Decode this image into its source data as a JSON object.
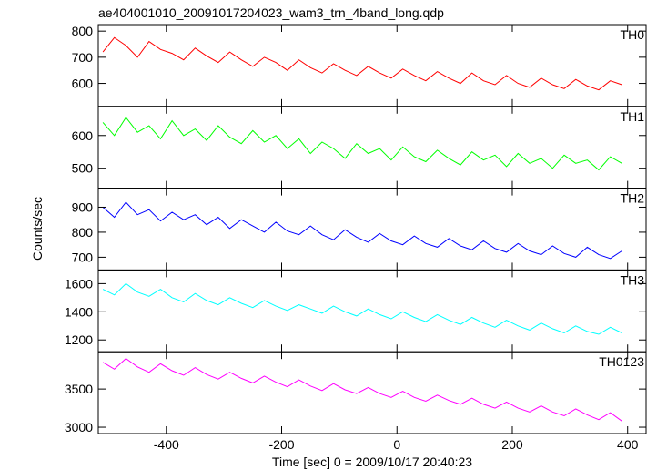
{
  "chart_data": {
    "type": "line",
    "title": "ae404001010_20091017204023_wam3_trn_4band_long.qdp",
    "xlabel": "Time [sec] 0 = 2009/10/17 20:40:23",
    "ylabel": "Counts/sec",
    "xlim": [
      -518,
      432
    ],
    "xticks": [
      -400,
      -200,
      0,
      200,
      400
    ],
    "x": [
      -510,
      -490,
      -470,
      -450,
      -430,
      -410,
      -390,
      -370,
      -350,
      -330,
      -310,
      -290,
      -270,
      -250,
      -230,
      -210,
      -190,
      -170,
      -150,
      -130,
      -110,
      -90,
      -70,
      -50,
      -30,
      -10,
      10,
      30,
      50,
      70,
      90,
      110,
      130,
      150,
      170,
      190,
      210,
      230,
      250,
      270,
      290,
      310,
      330,
      350,
      370,
      390
    ],
    "panels": [
      {
        "name": "TH0",
        "color": "#ff0000",
        "ylim": [
          512,
          825
        ],
        "yticks": [
          600,
          700,
          800
        ],
        "values": [
          720,
          775,
          745,
          700,
          760,
          730,
          715,
          690,
          735,
          705,
          680,
          720,
          690,
          665,
          700,
          680,
          650,
          690,
          660,
          640,
          675,
          650,
          630,
          665,
          640,
          620,
          655,
          630,
          610,
          645,
          620,
          600,
          640,
          610,
          595,
          630,
          600,
          585,
          620,
          595,
          580,
          615,
          590,
          575,
          610,
          595
        ]
      },
      {
        "name": "TH1",
        "color": "#00ff00",
        "ylim": [
          439,
          689
        ],
        "yticks": [
          500,
          600
        ],
        "values": [
          640,
          600,
          655,
          610,
          630,
          590,
          645,
          600,
          620,
          585,
          630,
          595,
          575,
          615,
          580,
          600,
          560,
          590,
          545,
          580,
          560,
          530,
          575,
          545,
          560,
          525,
          565,
          535,
          520,
          555,
          530,
          510,
          550,
          525,
          540,
          505,
          545,
          515,
          530,
          500,
          540,
          515,
          525,
          495,
          535,
          515
        ]
      },
      {
        "name": "TH2",
        "color": "#0000ff",
        "ylim": [
          649,
          976
        ],
        "yticks": [
          700,
          800,
          900
        ],
        "values": [
          900,
          860,
          920,
          870,
          890,
          845,
          880,
          850,
          870,
          830,
          860,
          815,
          850,
          825,
          800,
          840,
          805,
          790,
          825,
          790,
          770,
          810,
          780,
          760,
          795,
          765,
          750,
          785,
          755,
          740,
          775,
          745,
          730,
          765,
          735,
          720,
          755,
          725,
          710,
          745,
          715,
          700,
          740,
          710,
          695,
          725
        ]
      },
      {
        "name": "TH3",
        "color": "#00ffff",
        "ylim": [
          1116,
          1697
        ],
        "yticks": [
          1200,
          1400,
          1600
        ],
        "values": [
          1560,
          1520,
          1600,
          1540,
          1510,
          1560,
          1500,
          1470,
          1530,
          1480,
          1450,
          1500,
          1460,
          1430,
          1480,
          1440,
          1410,
          1450,
          1420,
          1390,
          1440,
          1400,
          1370,
          1420,
          1380,
          1350,
          1400,
          1360,
          1330,
          1380,
          1340,
          1310,
          1360,
          1320,
          1290,
          1340,
          1300,
          1270,
          1320,
          1280,
          1250,
          1300,
          1260,
          1240,
          1290,
          1250
        ]
      },
      {
        "name": "TH0123",
        "color": "#ff00ff",
        "ylim": [
          2917,
          3988
        ],
        "yticks": [
          3000,
          3500
        ],
        "values": [
          3850,
          3760,
          3900,
          3790,
          3720,
          3830,
          3740,
          3680,
          3780,
          3690,
          3630,
          3720,
          3640,
          3580,
          3670,
          3590,
          3530,
          3620,
          3540,
          3480,
          3570,
          3490,
          3440,
          3520,
          3440,
          3390,
          3470,
          3390,
          3340,
          3420,
          3350,
          3300,
          3380,
          3300,
          3250,
          3330,
          3250,
          3200,
          3280,
          3200,
          3150,
          3240,
          3160,
          3100,
          3190,
          3080
        ]
      }
    ]
  }
}
